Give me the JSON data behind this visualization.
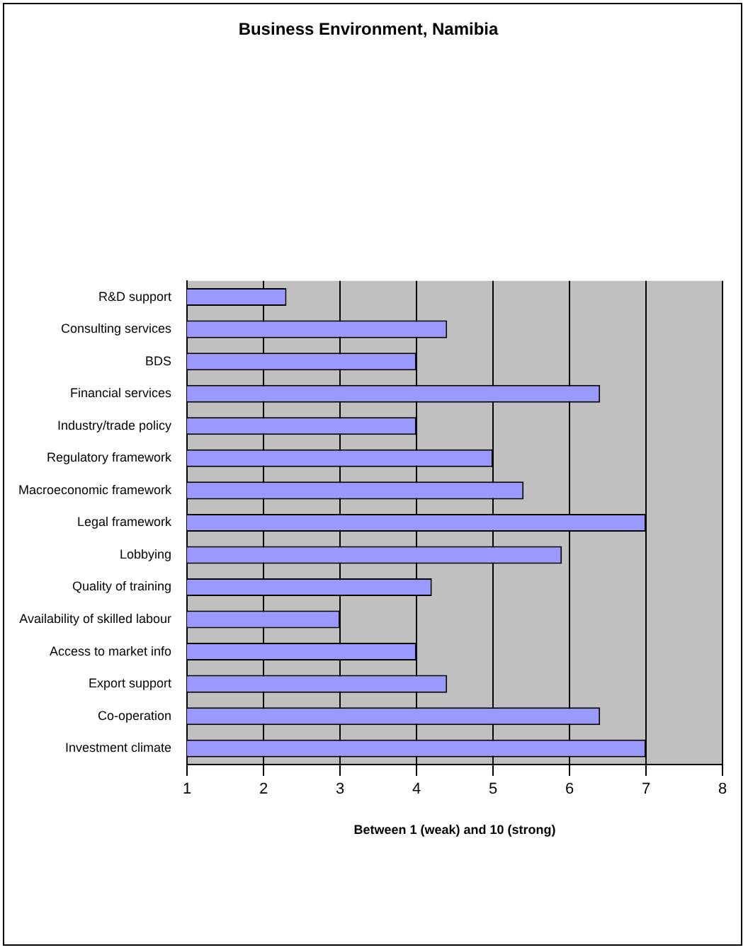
{
  "chart_data": {
    "type": "bar",
    "orientation": "horizontal",
    "title": "Business Environment, Namibia",
    "xlabel": "Between 1 (weak) and 10 (strong)",
    "categories": [
      "R&D support",
      "Consulting services",
      "BDS",
      "Financial services",
      "Industry/trade policy",
      "Regulatory framework",
      "Macroeconomic framework",
      "Legal framework",
      "Lobbying",
      "Quality of training",
      "Availability of skilled labour",
      "Access to market info",
      "Export support",
      "Co-operation",
      "Investment climate"
    ],
    "values": [
      2.3,
      4.4,
      4.0,
      6.4,
      4.0,
      5.0,
      5.4,
      7.0,
      5.9,
      4.2,
      3.0,
      4.0,
      4.4,
      6.4,
      7.0
    ],
    "color": "#9999ff",
    "xlim": [
      1,
      8
    ],
    "xticks": [
      1,
      2,
      3,
      4,
      5,
      6,
      7,
      8
    ],
    "grid": "x",
    "legend": false
  }
}
